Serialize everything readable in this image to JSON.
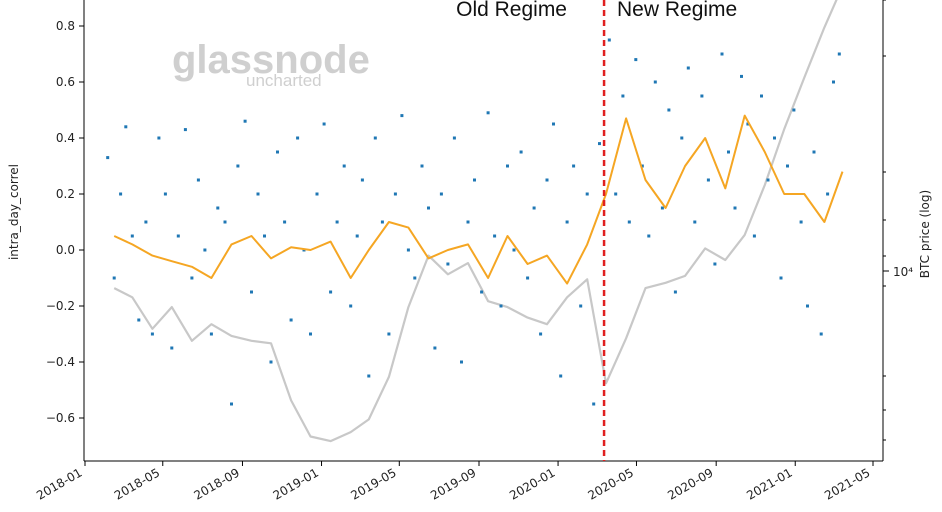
{
  "chart_data": {
    "type": "line",
    "title": "",
    "xlabel": "",
    "ylabel": "intra_day_correl",
    "y2label": "BTC price (log)",
    "ylim": [
      -0.76,
      0.86
    ],
    "y2_tick_label": "10⁴",
    "y_ticks": [
      -0.6,
      -0.4,
      -0.2,
      0.0,
      0.2,
      0.4,
      0.6,
      0.8
    ],
    "y_tick_labels": [
      "−0.6",
      "−0.4",
      "−0.2",
      "0.0",
      "0.2",
      "0.4",
      "0.6",
      "0.8"
    ],
    "x_tick_labels": [
      "2018-01",
      "2018-05",
      "2018-09",
      "2019-01",
      "2019-05",
      "2019-09",
      "2020-01",
      "2020-05",
      "2020-09",
      "2021-01",
      "2021-05"
    ],
    "regime_split": "2020-03-12",
    "annotations": {
      "old": "Old Regime",
      "new": "New Regime"
    },
    "watermark": {
      "main": "glassnode",
      "sub": "uncharted"
    },
    "colors": {
      "scatter": "#1f77b4",
      "rolling": "#f5a623",
      "price": "#c8c8c8",
      "divider": "#e02020"
    },
    "series": [
      {
        "kind": "rolling-mean",
        "x": [
          "2018-02",
          "2018-03",
          "2018-04",
          "2018-05",
          "2018-06",
          "2018-07",
          "2018-08",
          "2018-09",
          "2018-10",
          "2018-11",
          "2018-12",
          "2019-01",
          "2019-02",
          "2019-03",
          "2019-04",
          "2019-05",
          "2019-06",
          "2019-07",
          "2019-08",
          "2019-09",
          "2019-10",
          "2019-11",
          "2019-12",
          "2020-01",
          "2020-02",
          "2020-03",
          "2020-04",
          "2020-05",
          "2020-06",
          "2020-07",
          "2020-08",
          "2020-09",
          "2020-10",
          "2020-11",
          "2020-12",
          "2021-01",
          "2021-02",
          "2021-03"
        ],
        "values": [
          0.05,
          0.02,
          -0.02,
          -0.04,
          -0.06,
          -0.1,
          0.02,
          0.05,
          -0.03,
          0.01,
          0.0,
          0.03,
          -0.1,
          0.0,
          0.1,
          0.08,
          -0.03,
          0.0,
          0.02,
          -0.1,
          0.05,
          -0.05,
          -0.02,
          -0.12,
          0.02,
          0.2,
          0.47,
          0.25,
          0.15,
          0.3,
          0.4,
          0.22,
          0.48,
          0.35,
          0.2,
          0.2,
          0.1,
          0.28
        ]
      },
      {
        "kind": "btc-price",
        "x": [
          "2018-02",
          "2018-03",
          "2018-04",
          "2018-05",
          "2018-06",
          "2018-07",
          "2018-08",
          "2018-09",
          "2018-10",
          "2018-11",
          "2018-12",
          "2019-01",
          "2019-02",
          "2019-03",
          "2019-04",
          "2019-05",
          "2019-06",
          "2019-07",
          "2019-08",
          "2019-09",
          "2019-10",
          "2019-11",
          "2019-12",
          "2020-01",
          "2020-02",
          "2020-03",
          "2020-04",
          "2020-05",
          "2020-06",
          "2020-07",
          "2020-08",
          "2020-09",
          "2020-10",
          "2020-11",
          "2020-12",
          "2021-01",
          "2021-02",
          "2021-03"
        ],
        "values": [
          9000,
          8500,
          7000,
          8000,
          6500,
          7200,
          6700,
          6500,
          6400,
          4500,
          3600,
          3500,
          3700,
          4000,
          5200,
          8000,
          11000,
          9800,
          10500,
          8300,
          8000,
          7500,
          7200,
          8500,
          9500,
          5000,
          6600,
          9000,
          9300,
          9700,
          11500,
          10700,
          12500,
          17000,
          24000,
          33000,
          45000,
          58000
        ]
      }
    ],
    "scatter": {
      "name": "intra_day_correl",
      "x": [
        "2018-02-05",
        "2018-02-15",
        "2018-02-25",
        "2018-03-05",
        "2018-03-15",
        "2018-03-25",
        "2018-04-05",
        "2018-04-15",
        "2018-04-25",
        "2018-05-05",
        "2018-05-15",
        "2018-05-25",
        "2018-06-05",
        "2018-06-15",
        "2018-06-25",
        "2018-07-05",
        "2018-07-15",
        "2018-07-25",
        "2018-08-05",
        "2018-08-15",
        "2018-08-25",
        "2018-09-05",
        "2018-09-15",
        "2018-09-25",
        "2018-10-05",
        "2018-10-15",
        "2018-10-25",
        "2018-11-05",
        "2018-11-15",
        "2018-11-25",
        "2018-12-05",
        "2018-12-15",
        "2018-12-25",
        "2019-01-05",
        "2019-01-15",
        "2019-01-25",
        "2019-02-05",
        "2019-02-15",
        "2019-02-25",
        "2019-03-05",
        "2019-03-15",
        "2019-03-25",
        "2019-04-05",
        "2019-04-15",
        "2019-04-25",
        "2019-05-05",
        "2019-05-15",
        "2019-05-25",
        "2019-06-05",
        "2019-06-15",
        "2019-06-25",
        "2019-07-05",
        "2019-07-15",
        "2019-07-25",
        "2019-08-05",
        "2019-08-15",
        "2019-08-25",
        "2019-09-05",
        "2019-09-15",
        "2019-09-25",
        "2019-10-05",
        "2019-10-15",
        "2019-10-25",
        "2019-11-05",
        "2019-11-15",
        "2019-11-25",
        "2019-12-05",
        "2019-12-15",
        "2019-12-25",
        "2020-01-05",
        "2020-01-15",
        "2020-01-25",
        "2020-02-05",
        "2020-02-15",
        "2020-02-25",
        "2020-03-05",
        "2020-03-20",
        "2020-03-30",
        "2020-04-10",
        "2020-04-20",
        "2020-04-30",
        "2020-05-10",
        "2020-05-20",
        "2020-05-30",
        "2020-06-10",
        "2020-06-20",
        "2020-06-30",
        "2020-07-10",
        "2020-07-20",
        "2020-07-30",
        "2020-08-10",
        "2020-08-20",
        "2020-08-30",
        "2020-09-10",
        "2020-09-20",
        "2020-09-30",
        "2020-10-10",
        "2020-10-20",
        "2020-10-30",
        "2020-11-10",
        "2020-11-20",
        "2020-11-30",
        "2020-12-10",
        "2020-12-20",
        "2020-12-30",
        "2021-01-10",
        "2021-01-20",
        "2021-01-30",
        "2021-02-10",
        "2021-02-20",
        "2021-03-01",
        "2021-03-10"
      ],
      "values": [
        0.33,
        -0.1,
        0.2,
        0.44,
        0.05,
        -0.25,
        0.1,
        -0.3,
        0.4,
        0.2,
        -0.35,
        0.05,
        0.43,
        -0.1,
        0.25,
        0.0,
        -0.3,
        0.15,
        0.1,
        -0.55,
        0.3,
        0.46,
        -0.15,
        0.2,
        0.05,
        -0.4,
        0.35,
        0.1,
        -0.25,
        0.4,
        0.0,
        -0.3,
        0.2,
        0.45,
        -0.15,
        0.1,
        0.3,
        -0.2,
        0.05,
        0.25,
        -0.45,
        0.4,
        0.1,
        -0.3,
        0.2,
        0.48,
        0.0,
        -0.1,
        0.3,
        0.15,
        -0.35,
        0.2,
        -0.05,
        0.4,
        -0.4,
        0.1,
        0.25,
        -0.15,
        0.49,
        0.05,
        -0.2,
        0.3,
        0.0,
        0.35,
        -0.1,
        0.15,
        -0.3,
        0.25,
        0.45,
        -0.45,
        0.1,
        0.3,
        -0.2,
        0.2,
        -0.55,
        0.38,
        0.75,
        0.2,
        0.55,
        0.1,
        0.68,
        0.3,
        0.05,
        0.6,
        0.15,
        0.5,
        -0.15,
        0.4,
        0.65,
        0.1,
        0.55,
        0.25,
        -0.05,
        0.7,
        0.35,
        0.15,
        0.62,
        0.45,
        0.05,
        0.55,
        0.25,
        0.4,
        -0.1,
        0.3,
        0.5,
        0.1,
        -0.2,
        0.35,
        -0.3,
        0.2,
        0.6,
        0.7
      ]
    }
  }
}
